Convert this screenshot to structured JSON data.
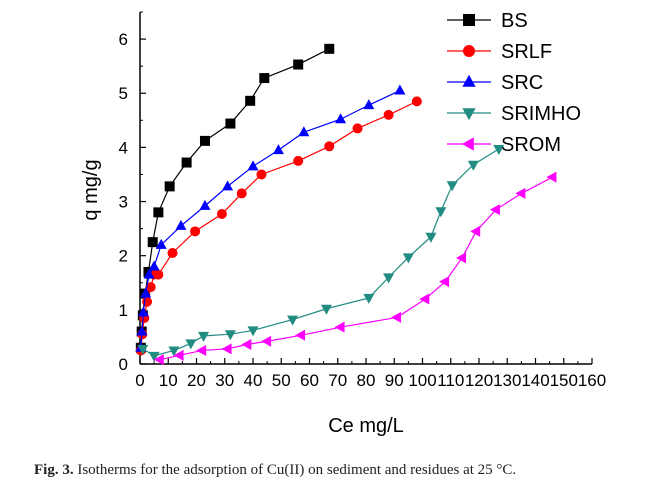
{
  "chart_data": {
    "type": "scatter",
    "xlabel": "Ce  mg/L",
    "ylabel": "q mg/g",
    "xlim": [
      0,
      160
    ],
    "ylim": [
      0,
      6.5
    ],
    "xticks": [
      0,
      10,
      20,
      30,
      40,
      50,
      60,
      70,
      80,
      90,
      100,
      110,
      120,
      130,
      140,
      150,
      160
    ],
    "yticks": [
      0,
      1,
      2,
      3,
      4,
      5,
      6
    ],
    "grid": false,
    "legend_position": "top-right",
    "series": [
      {
        "name": "BS",
        "color": "#000000",
        "marker": "square",
        "x": [
          0.3,
          0.6,
          1.0,
          1.8,
          3.0,
          4.5,
          6.5,
          10.5,
          16.5,
          23,
          32,
          39,
          44,
          56,
          67
        ],
        "y": [
          0.3,
          0.6,
          0.9,
          1.3,
          1.7,
          2.25,
          2.8,
          3.28,
          3.72,
          4.12,
          4.44,
          4.86,
          5.28,
          5.53,
          5.82
        ]
      },
      {
        "name": "SRLF",
        "color": "#ff0000",
        "marker": "circle",
        "x": [
          0.3,
          0.8,
          1.5,
          2.5,
          3.8,
          5.0,
          6.5,
          11.5,
          19.5,
          29,
          36,
          43,
          56,
          67,
          77,
          88,
          98
        ],
        "y": [
          0.25,
          0.55,
          0.85,
          1.15,
          1.42,
          1.65,
          1.65,
          2.05,
          2.45,
          2.77,
          3.15,
          3.5,
          3.75,
          4.02,
          4.35,
          4.6,
          4.85
        ]
      },
      {
        "name": "SRC",
        "color": "#0000ff",
        "marker": "triangle-up",
        "x": [
          0.3,
          0.7,
          1.2,
          2.0,
          3.2,
          5.0,
          7.5,
          14.5,
          23,
          31,
          40,
          49,
          58,
          71,
          81,
          92
        ],
        "y": [
          0.3,
          0.6,
          0.95,
          1.3,
          1.65,
          1.8,
          2.2,
          2.55,
          2.92,
          3.28,
          3.65,
          3.95,
          4.28,
          4.52,
          4.78,
          5.05
        ]
      },
      {
        "name": "SRIMHO",
        "color": "#228b82",
        "marker": "triangle-down",
        "x": [
          1.0,
          5.0,
          12.0,
          18.0,
          22.5,
          32.0,
          40.0,
          54.0,
          66.0,
          81.0,
          88.0,
          95.0,
          103.0,
          106.5,
          110.5,
          118.0,
          127.0
        ],
        "y": [
          0.28,
          0.15,
          0.25,
          0.38,
          0.52,
          0.55,
          0.62,
          0.82,
          1.02,
          1.22,
          1.6,
          1.97,
          2.35,
          2.82,
          3.3,
          3.68,
          3.97
        ]
      },
      {
        "name": "SROM",
        "color": "#ff00ff",
        "marker": "triangle-left",
        "x": [
          7.0,
          14.0,
          22.0,
          31.0,
          38.0,
          45.0,
          57.0,
          71.0,
          91.0,
          101.0,
          108.0,
          114.0,
          119.0,
          126.0,
          135.0,
          146.0
        ],
        "y": [
          0.08,
          0.16,
          0.25,
          0.28,
          0.36,
          0.42,
          0.53,
          0.68,
          0.86,
          1.2,
          1.52,
          1.96,
          2.45,
          2.85,
          3.15,
          3.45
        ]
      }
    ]
  },
  "caption": {
    "label": "Fig. 3.",
    "text": "Isotherms for the adsorption of Cu(II) on sediment and residues at 25 °C."
  }
}
